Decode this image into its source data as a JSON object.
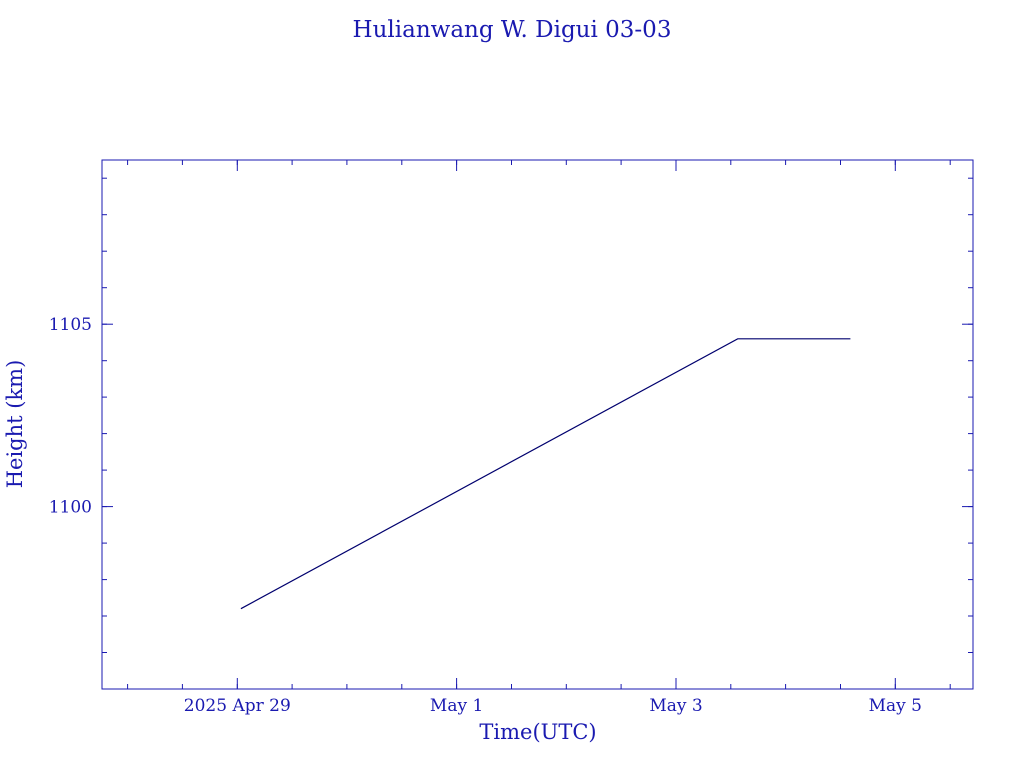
{
  "colors": {
    "axis": "#1a1ab0",
    "text": "#1a1ab0",
    "line": "#00006e",
    "background": "#ffffff"
  },
  "chart_data": {
    "type": "line",
    "title": "Hulianwang W. Digui 03-03",
    "xlabel": "Time(UTC)",
    "ylabel": "Height (km)",
    "x_ticks": [
      {
        "label": "2025 Apr 29",
        "value": "2025-04-29T00:00"
      },
      {
        "label": "May  1",
        "value": "2025-05-01T00:00"
      },
      {
        "label": "May  3",
        "value": "2025-05-03T00:00"
      },
      {
        "label": "May  5",
        "value": "2025-05-05T00:00"
      }
    ],
    "y_ticks": [
      1100,
      1105
    ],
    "xlim": [
      "2025-04-27T18:24",
      "2025-05-05T17:00"
    ],
    "ylim": [
      1095.0,
      1109.5
    ],
    "grid": false,
    "series": [
      {
        "x": [
          "2025-04-29T00:48",
          "2025-05-03T13:30",
          "2025-05-04T14:10"
        ],
        "y": [
          1097.2,
          1104.6,
          1104.6
        ]
      }
    ]
  }
}
